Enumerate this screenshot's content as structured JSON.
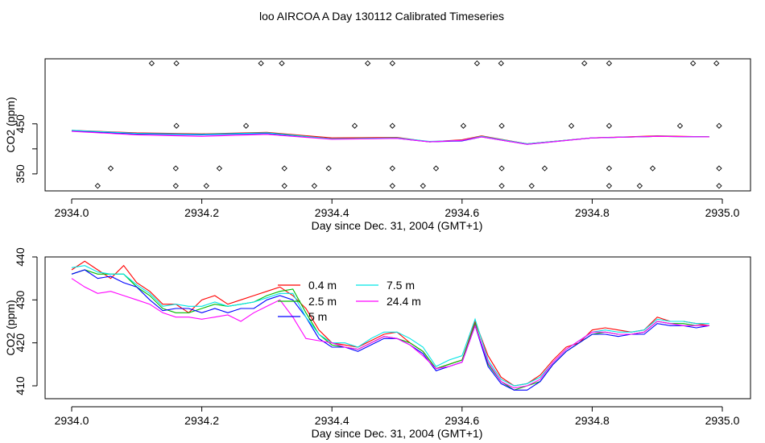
{
  "title": "loo AIRCOA A  Day 130112  Calibrated Timeseries",
  "chart_data": [
    {
      "type": "scatter+line",
      "xlabel": "Day since Dec. 31, 2004 (GMT+1)",
      "ylabel": "CO2 (ppm)",
      "xlim": [
        2934.0,
        2935.0
      ],
      "ylim": [
        316,
        580
      ],
      "xticks": [
        "2934.0",
        "2934.2",
        "2934.4",
        "2934.6",
        "2934.8",
        "2935.0"
      ],
      "yticks": [
        "350",
        "400",
        "450"
      ],
      "ytick_values": [
        350,
        400,
        450
      ],
      "ytick_labels_shown": [
        "350",
        "450"
      ],
      "legend": null,
      "series": [
        {
          "color": "#ff0000",
          "x": [
            2934.0,
            2934.1,
            2934.2,
            2934.3,
            2934.4,
            2934.5,
            2934.55,
            2934.6,
            2934.63,
            2934.7,
            2934.8,
            2934.9,
            2934.98
          ],
          "y": [
            437,
            432,
            430,
            433,
            422,
            423,
            414,
            418,
            426,
            410,
            422,
            426,
            424
          ]
        },
        {
          "color": "#00bb00",
          "x": [
            2934.0,
            2934.1,
            2934.2,
            2934.3,
            2934.4,
            2934.5,
            2934.55,
            2934.6,
            2934.63,
            2934.7,
            2934.8,
            2934.9,
            2934.98
          ],
          "y": [
            436,
            430,
            429,
            432,
            420,
            422,
            414,
            417,
            425,
            410,
            422,
            425,
            424
          ]
        },
        {
          "color": "#0000ff",
          "x": [
            2934.0,
            2934.1,
            2934.2,
            2934.3,
            2934.4,
            2934.5,
            2934.55,
            2934.6,
            2934.63,
            2934.7,
            2934.8,
            2934.9,
            2934.98
          ],
          "y": [
            436,
            430,
            428,
            431,
            420,
            421,
            414,
            416,
            424,
            409,
            422,
            425,
            424
          ]
        },
        {
          "color": "#00e5e5",
          "x": [
            2934.0,
            2934.1,
            2934.2,
            2934.3,
            2934.4,
            2934.5,
            2934.55,
            2934.6,
            2934.63,
            2934.7,
            2934.8,
            2934.9,
            2934.98
          ],
          "y": [
            437,
            431,
            429,
            432,
            420,
            422,
            415,
            417,
            425,
            410,
            422,
            425,
            424
          ]
        },
        {
          "color": "#ff00ff",
          "x": [
            2934.0,
            2934.1,
            2934.2,
            2934.3,
            2934.4,
            2934.5,
            2934.55,
            2934.6,
            2934.63,
            2934.7,
            2934.8,
            2934.9,
            2934.98
          ],
          "y": [
            435,
            428,
            425,
            429,
            419,
            421,
            414,
            417,
            424,
            409,
            422,
            425,
            424
          ]
        }
      ],
      "markers": [
        {
          "x": [
            2934.123,
            2934.161,
            2934.291,
            2934.323,
            2934.455,
            2934.493,
            2934.623,
            2934.66,
            2934.788,
            2934.826,
            2934.955,
            2934.991
          ],
          "y": [
            571,
            571,
            571,
            571,
            571,
            571,
            571,
            571,
            571,
            571,
            571,
            571
          ]
        },
        {
          "x": [
            2934.161,
            2934.268,
            2934.435,
            2934.493,
            2934.602,
            2934.661,
            2934.768,
            2934.826,
            2934.935,
            2934.995
          ],
          "y": [
            446,
            446,
            446,
            446,
            446,
            446,
            446,
            446,
            446,
            446
          ]
        },
        {
          "x": [
            2934.06,
            2934.16,
            2934.227,
            2934.327,
            2934.395,
            2934.493,
            2934.56,
            2934.661,
            2934.727,
            2934.826,
            2934.893,
            2934.995
          ],
          "y": [
            361,
            361,
            361,
            361,
            361,
            361,
            361,
            361,
            361,
            361,
            361,
            361
          ]
        },
        {
          "x": [
            2934.04,
            2934.16,
            2934.207,
            2934.327,
            2934.373,
            2934.493,
            2934.54,
            2934.661,
            2934.707,
            2934.826,
            2934.873,
            2934.995
          ],
          "y": [
            326,
            326,
            326,
            326,
            326,
            326,
            326,
            326,
            326,
            326,
            326,
            326
          ]
        }
      ]
    },
    {
      "type": "line",
      "xlabel": "Day since Dec. 31, 2004 (GMT+1)",
      "ylabel": "CO2 (ppm)",
      "xlim": [
        2934.0,
        2935.0
      ],
      "ylim": [
        407,
        440
      ],
      "xticks": [
        "2934.0",
        "2934.2",
        "2934.4",
        "2934.6",
        "2934.8",
        "2935.0"
      ],
      "yticks": [
        "410",
        "420",
        "430",
        "440"
      ],
      "ytick_values": [
        410,
        420,
        430,
        440
      ],
      "legend": {
        "placement": "top-center",
        "entries": [
          {
            "label": "0.4 m",
            "color": "#ff0000"
          },
          {
            "label": "2.5 m",
            "color": "#00bb00"
          },
          {
            "label": "5 m",
            "color": "#0000ff"
          },
          {
            "label": "7.5 m",
            "color": "#00e5e5"
          },
          {
            "label": "24.4 m",
            "color": "#ff00ff"
          }
        ]
      },
      "series": [
        {
          "name": "0.4 m",
          "color": "#ff0000",
          "x": [
            2934.0,
            2934.02,
            2934.04,
            2934.06,
            2934.08,
            2934.1,
            2934.12,
            2934.14,
            2934.16,
            2934.18,
            2934.2,
            2934.22,
            2934.24,
            2934.26,
            2934.28,
            2934.3,
            2934.32,
            2934.34,
            2934.36,
            2934.38,
            2934.4,
            2934.42,
            2934.44,
            2934.46,
            2934.48,
            2934.5,
            2934.52,
            2934.54,
            2934.56,
            2934.58,
            2934.6,
            2934.62,
            2934.64,
            2934.66,
            2934.68,
            2934.7,
            2934.72,
            2934.74,
            2934.76,
            2934.78,
            2934.8,
            2934.82,
            2934.84,
            2934.86,
            2934.88,
            2934.9,
            2934.92,
            2934.94,
            2934.96,
            2934.98
          ],
          "y": [
            437.0,
            439.0,
            437.0,
            435.0,
            438.0,
            434.0,
            432.0,
            429.0,
            429.0,
            427.0,
            430.0,
            431.0,
            429.0,
            430.0,
            431.0,
            432.0,
            433.0,
            431.0,
            428.0,
            423.0,
            420.0,
            419.5,
            419.0,
            420.5,
            422.0,
            422.5,
            420.0,
            418.0,
            414.0,
            415.0,
            416.0,
            425.0,
            417.0,
            412.0,
            410.0,
            410.5,
            412.5,
            416.0,
            419.0,
            420.0,
            423.0,
            423.5,
            423.0,
            422.5,
            423.0,
            426.0,
            425.0,
            425.0,
            424.5,
            424.0
          ]
        },
        {
          "name": "2.5 m",
          "color": "#00bb00",
          "x": [
            2934.0,
            2934.02,
            2934.04,
            2934.06,
            2934.08,
            2934.1,
            2934.12,
            2934.14,
            2934.16,
            2934.18,
            2934.2,
            2934.22,
            2934.24,
            2934.26,
            2934.28,
            2934.3,
            2934.32,
            2934.34,
            2934.36,
            2934.38,
            2934.4,
            2934.42,
            2934.44,
            2934.46,
            2934.48,
            2934.5,
            2934.52,
            2934.54,
            2934.56,
            2934.58,
            2934.6,
            2934.62,
            2934.64,
            2934.66,
            2934.68,
            2934.7,
            2934.72,
            2934.74,
            2934.76,
            2934.78,
            2934.8,
            2934.82,
            2934.84,
            2934.86,
            2934.88,
            2934.9,
            2934.92,
            2934.94,
            2934.96,
            2934.98
          ],
          "y": [
            436.0,
            437.0,
            436.0,
            436.0,
            436.0,
            433.0,
            431.0,
            428.0,
            427.0,
            427.0,
            428.0,
            429.0,
            428.5,
            429.0,
            429.5,
            431.0,
            432.0,
            432.5,
            427.0,
            422.0,
            419.5,
            419.0,
            418.5,
            420.0,
            421.5,
            421.0,
            420.0,
            418.0,
            414.0,
            415.0,
            416.0,
            424.5,
            415.0,
            411.0,
            409.0,
            410.0,
            411.0,
            415.0,
            418.0,
            420.0,
            422.0,
            422.5,
            422.0,
            422.0,
            422.5,
            425.0,
            424.5,
            424.5,
            424.0,
            424.0
          ]
        },
        {
          "name": "5 m",
          "color": "#0000ff",
          "x": [
            2934.0,
            2934.02,
            2934.04,
            2934.06,
            2934.08,
            2934.1,
            2934.12,
            2934.14,
            2934.16,
            2934.18,
            2934.2,
            2934.22,
            2934.24,
            2934.26,
            2934.28,
            2934.3,
            2934.32,
            2934.34,
            2934.36,
            2934.38,
            2934.4,
            2934.42,
            2934.44,
            2934.46,
            2934.48,
            2934.5,
            2934.52,
            2934.54,
            2934.56,
            2934.58,
            2934.6,
            2934.62,
            2934.64,
            2934.66,
            2934.68,
            2934.7,
            2934.72,
            2934.74,
            2934.76,
            2934.78,
            2934.8,
            2934.82,
            2934.84,
            2934.86,
            2934.88,
            2934.9,
            2934.92,
            2934.94,
            2934.96,
            2934.98
          ],
          "y": [
            436.0,
            437.0,
            435.0,
            435.5,
            434.0,
            433.0,
            430.0,
            427.5,
            428.0,
            428.0,
            427.0,
            428.0,
            427.0,
            428.0,
            428.0,
            430.0,
            431.0,
            430.0,
            426.0,
            421.0,
            419.0,
            419.0,
            418.0,
            419.5,
            421.0,
            421.0,
            419.5,
            417.5,
            413.5,
            414.5,
            415.5,
            424.0,
            414.5,
            410.5,
            409.0,
            409.0,
            411.0,
            415.0,
            418.0,
            420.0,
            422.0,
            422.0,
            421.5,
            422.0,
            422.0,
            424.5,
            424.0,
            424.0,
            423.5,
            424.0
          ]
        },
        {
          "name": "7.5 m",
          "color": "#00e5e5",
          "x": [
            2934.0,
            2934.02,
            2934.04,
            2934.06,
            2934.08,
            2934.1,
            2934.12,
            2934.14,
            2934.16,
            2934.18,
            2934.2,
            2934.22,
            2934.24,
            2934.26,
            2934.28,
            2934.3,
            2934.32,
            2934.34,
            2934.36,
            2934.38,
            2934.4,
            2934.42,
            2934.44,
            2934.46,
            2934.48,
            2934.5,
            2934.52,
            2934.54,
            2934.56,
            2934.58,
            2934.6,
            2934.62,
            2934.64,
            2934.66,
            2934.68,
            2934.7,
            2934.72,
            2934.74,
            2934.76,
            2934.78,
            2934.8,
            2934.82,
            2934.84,
            2934.86,
            2934.88,
            2934.9,
            2934.92,
            2934.94,
            2934.96,
            2934.98
          ],
          "y": [
            437.5,
            438.0,
            436.5,
            436.0,
            436.0,
            433.5,
            431.5,
            428.5,
            429.0,
            428.5,
            428.5,
            429.5,
            428.5,
            429.0,
            429.5,
            430.5,
            431.5,
            431.5,
            426.0,
            422.0,
            420.0,
            420.0,
            419.0,
            421.0,
            422.5,
            422.5,
            421.0,
            419.0,
            414.5,
            416.0,
            417.0,
            425.5,
            416.0,
            411.5,
            410.0,
            410.5,
            412.0,
            415.5,
            418.5,
            420.5,
            422.5,
            423.0,
            422.5,
            422.5,
            423.0,
            425.5,
            425.0,
            425.0,
            424.5,
            424.5
          ]
        },
        {
          "name": "24.4 m",
          "color": "#ff00ff",
          "x": [
            2934.0,
            2934.02,
            2934.04,
            2934.06,
            2934.08,
            2934.1,
            2934.12,
            2934.14,
            2934.16,
            2934.18,
            2934.2,
            2934.22,
            2934.24,
            2934.26,
            2934.28,
            2934.3,
            2934.32,
            2934.34,
            2934.36,
            2934.38,
            2934.4,
            2934.42,
            2934.44,
            2934.46,
            2934.48,
            2934.5,
            2934.52,
            2934.54,
            2934.56,
            2934.58,
            2934.6,
            2934.62,
            2934.64,
            2934.66,
            2934.68,
            2934.7,
            2934.72,
            2934.74,
            2934.76,
            2934.78,
            2934.8,
            2934.82,
            2934.84,
            2934.86,
            2934.88,
            2934.9,
            2934.92,
            2934.94,
            2934.96,
            2934.98
          ],
          "y": [
            435.0,
            433.0,
            431.5,
            432.0,
            431.0,
            430.0,
            429.0,
            427.0,
            426.0,
            426.0,
            425.5,
            426.0,
            426.5,
            425.0,
            427.0,
            428.5,
            430.0,
            426.0,
            421.0,
            420.5,
            420.0,
            419.0,
            418.5,
            420.0,
            421.5,
            421.0,
            419.5,
            417.0,
            414.0,
            414.5,
            415.5,
            424.0,
            415.5,
            411.0,
            409.5,
            410.0,
            411.5,
            415.5,
            418.5,
            420.5,
            422.5,
            422.5,
            422.0,
            422.0,
            422.5,
            425.0,
            424.5,
            424.0,
            424.0,
            424.0
          ]
        }
      ]
    }
  ]
}
